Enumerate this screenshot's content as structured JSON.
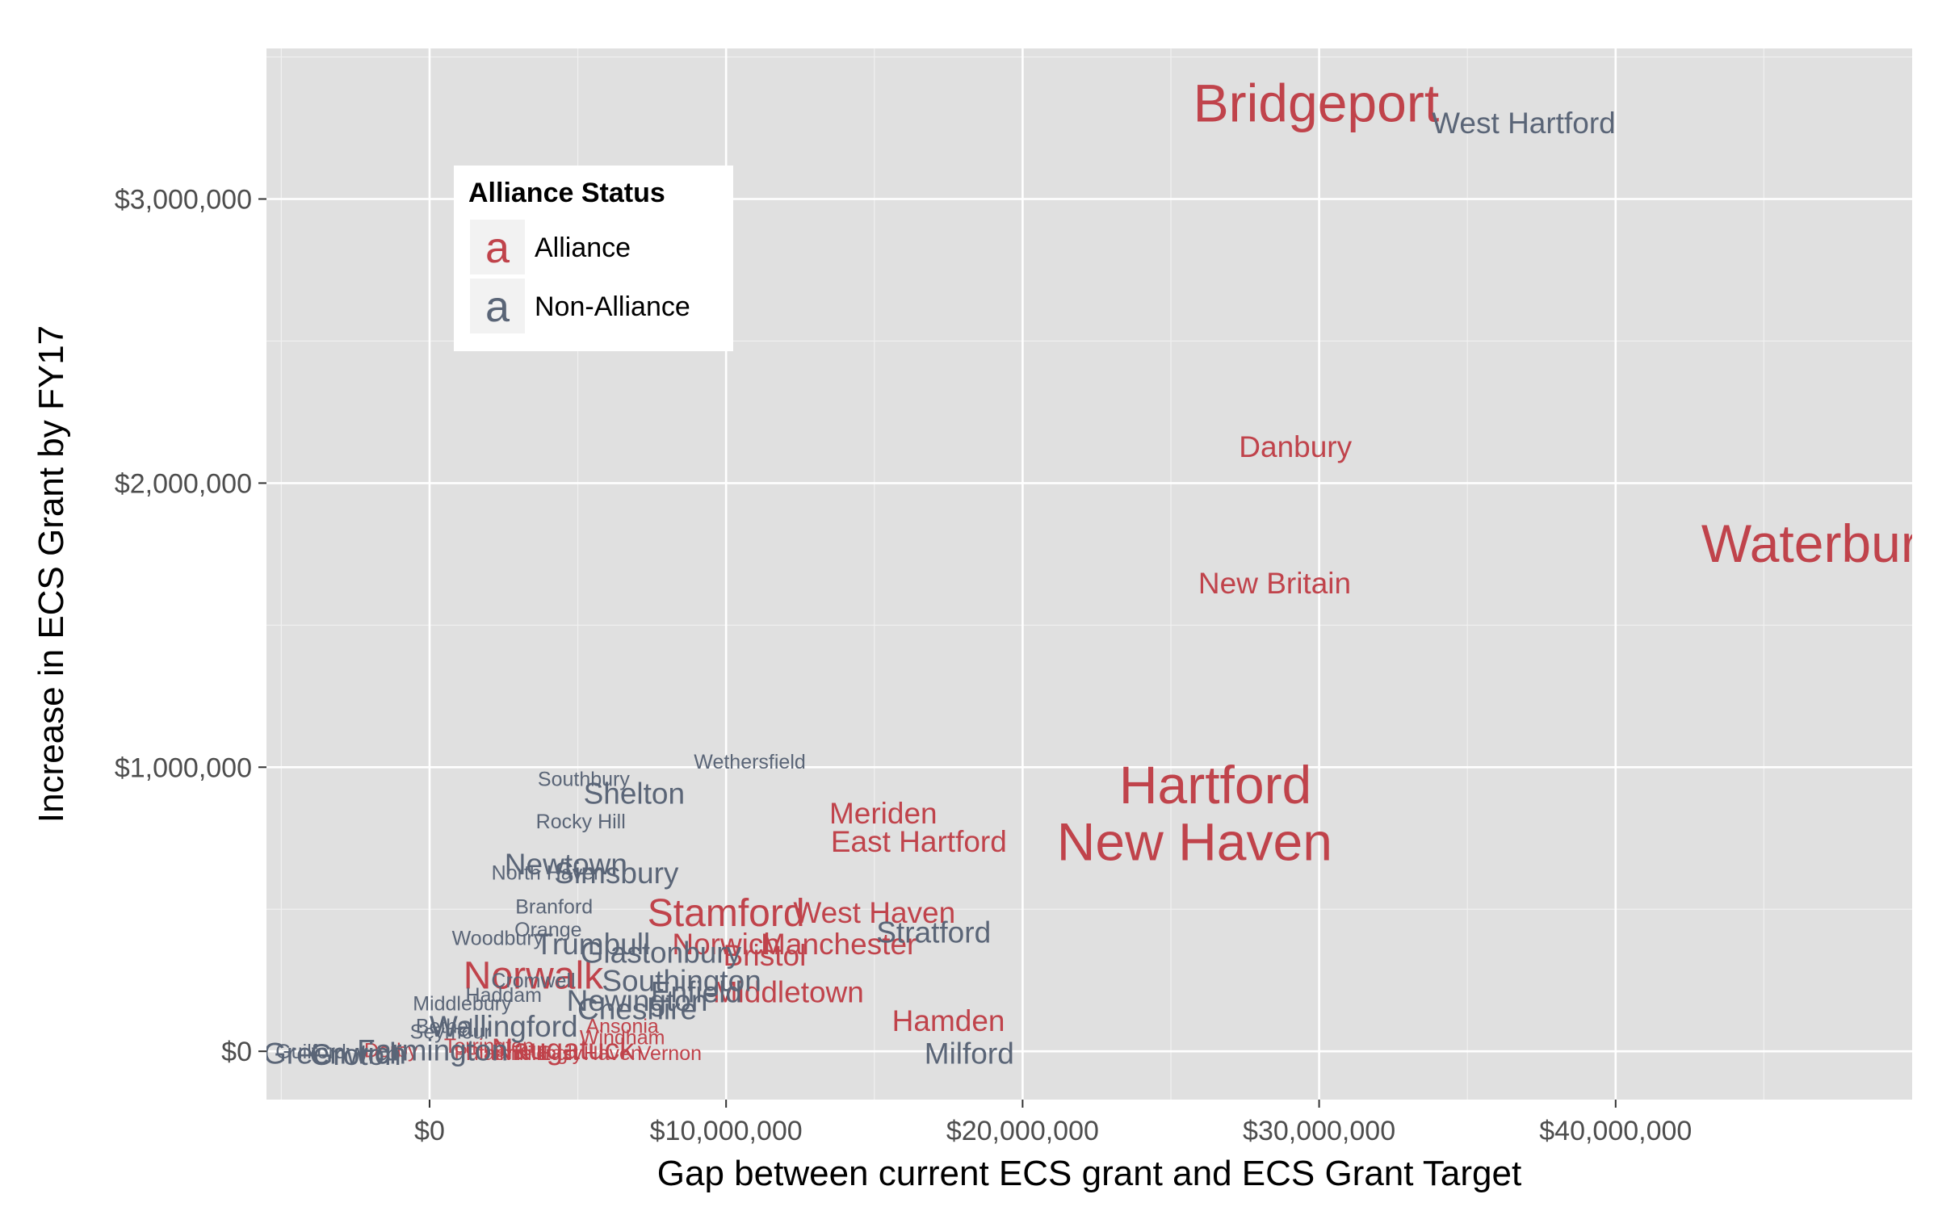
{
  "chart_data": {
    "type": "scatter",
    "title": "",
    "xlabel": "Gap between current ECS grant and ECS Grant Target",
    "ylabel": "Increase in ECS Grant by FY17",
    "xlim": [
      -5500000,
      50000000
    ],
    "ylim": [
      -170000,
      3530000
    ],
    "x_ticks": [
      0,
      10000000,
      20000000,
      30000000,
      40000000
    ],
    "x_tick_labels": [
      "$0",
      "$10,000,000",
      "$20,000,000",
      "$30,000,000",
      "$40,000,000"
    ],
    "y_ticks": [
      0,
      1000000,
      2000000,
      3000000
    ],
    "y_tick_labels": [
      "$0",
      "$1,000,000",
      "$2,000,000",
      "$3,000,000"
    ],
    "grid": true,
    "legend": {
      "title": "Alliance Status",
      "position": "top-left",
      "key_glyph": "a",
      "entries": [
        {
          "label": "Alliance",
          "color": "#c0434b"
        },
        {
          "label": "Non-Alliance",
          "color": "#5a6577"
        }
      ]
    },
    "colors": {
      "Alliance": "#c0434b",
      "Non-Alliance": "#5a6577",
      "panel": "#e0e0e0",
      "grid": "#ffffff"
    },
    "series": [
      {
        "name": "Alliance",
        "points": [
          {
            "label": "Bridgeport",
            "x": 29900000,
            "y": 3340000,
            "size": 4
          },
          {
            "label": "Waterbury",
            "x": 47000000,
            "y": 1790000,
            "size": 4
          },
          {
            "label": "Danbury",
            "x": 29200000,
            "y": 2130000,
            "size": 2
          },
          {
            "label": "New Britain",
            "x": 28500000,
            "y": 1650000,
            "size": 2
          },
          {
            "label": "Hartford",
            "x": 26500000,
            "y": 940000,
            "size": 4
          },
          {
            "label": "New Haven",
            "x": 25800000,
            "y": 740000,
            "size": 4
          },
          {
            "label": "Meriden",
            "x": 15300000,
            "y": 840000,
            "size": 2
          },
          {
            "label": "East Hartford",
            "x": 16500000,
            "y": 740000,
            "size": 2
          },
          {
            "label": "Stamford",
            "x": 10000000,
            "y": 490000,
            "size": 3
          },
          {
            "label": "West Haven",
            "x": 15000000,
            "y": 490000,
            "size": 2
          },
          {
            "label": "Manchester",
            "x": 13800000,
            "y": 380000,
            "size": 2
          },
          {
            "label": "Norwich",
            "x": 10000000,
            "y": 380000,
            "size": 2
          },
          {
            "label": "Bristol",
            "x": 11300000,
            "y": 340000,
            "size": 2
          },
          {
            "label": "Norwalk",
            "x": 3500000,
            "y": 270000,
            "size": 3
          },
          {
            "label": "Middletown",
            "x": 12100000,
            "y": 210000,
            "size": 2
          },
          {
            "label": "Hamden",
            "x": 17500000,
            "y": 110000,
            "size": 2
          },
          {
            "label": "Ansonia",
            "x": 6500000,
            "y": 90000,
            "size": 1
          },
          {
            "label": "Windham",
            "x": 6500000,
            "y": 50000,
            "size": 1
          },
          {
            "label": "Naugatuck",
            "x": 4500000,
            "y": 10000,
            "size": 2
          },
          {
            "label": "Torrington",
            "x": 2000000,
            "y": 20000,
            "size": 1
          },
          {
            "label": "Vernon",
            "x": 8100000,
            "y": -5000,
            "size": 1
          },
          {
            "label": "Killingly",
            "x": 4000000,
            "y": -5000,
            "size": 1
          },
          {
            "label": "Putnam",
            "x": 2000000,
            "y": -5000,
            "size": 1
          },
          {
            "label": "Derby",
            "x": -1300000,
            "y": 5000,
            "size": 1
          },
          {
            "label": "East Haven",
            "x": 5400000,
            "y": -5000,
            "size": 1
          },
          {
            "label": "Plainfield",
            "x": 2600000,
            "y": -5000,
            "size": 1
          }
        ]
      },
      {
        "name": "Non-Alliance",
        "points": [
          {
            "label": "West Hartford",
            "x": 36900000,
            "y": 3270000,
            "size": 2
          },
          {
            "label": "Wethersfield",
            "x": 10800000,
            "y": 1020000,
            "size": 1
          },
          {
            "label": "Southbury",
            "x": 5200000,
            "y": 960000,
            "size": 1
          },
          {
            "label": "Shelton",
            "x": 6900000,
            "y": 910000,
            "size": 2
          },
          {
            "label": "Rocky Hill",
            "x": 5100000,
            "y": 810000,
            "size": 1
          },
          {
            "label": "Newtown",
            "x": 4600000,
            "y": 660000,
            "size": 2
          },
          {
            "label": "North Haven",
            "x": 4000000,
            "y": 630000,
            "size": 1
          },
          {
            "label": "Simsbury",
            "x": 6300000,
            "y": 630000,
            "size": 2
          },
          {
            "label": "Branford",
            "x": 4200000,
            "y": 510000,
            "size": 1
          },
          {
            "label": "Stratford",
            "x": 17000000,
            "y": 420000,
            "size": 2
          },
          {
            "label": "Orange",
            "x": 4000000,
            "y": 430000,
            "size": 1
          },
          {
            "label": "Woodbury",
            "x": 2300000,
            "y": 400000,
            "size": 1
          },
          {
            "label": "Trumbull",
            "x": 5500000,
            "y": 380000,
            "size": 2
          },
          {
            "label": "Glastonbury",
            "x": 7800000,
            "y": 350000,
            "size": 2
          },
          {
            "label": "Southington",
            "x": 8500000,
            "y": 250000,
            "size": 2
          },
          {
            "label": "Cromwell",
            "x": 3500000,
            "y": 250000,
            "size": 1
          },
          {
            "label": "Enfield",
            "x": 9000000,
            "y": 210000,
            "size": 2
          },
          {
            "label": "Haddam",
            "x": 2500000,
            "y": 200000,
            "size": 1
          },
          {
            "label": "Newington",
            "x": 7000000,
            "y": 180000,
            "size": 2
          },
          {
            "label": "Middlebury",
            "x": 1100000,
            "y": 170000,
            "size": 1
          },
          {
            "label": "Cheshire",
            "x": 7000000,
            "y": 150000,
            "size": 2
          },
          {
            "label": "Wallingford",
            "x": 2500000,
            "y": 90000,
            "size": 2
          },
          {
            "label": "Bethel",
            "x": 500000,
            "y": 90000,
            "size": 1
          },
          {
            "label": "Seymour",
            "x": 700000,
            "y": 70000,
            "size": 1
          },
          {
            "label": "Milford",
            "x": 18200000,
            "y": -5000,
            "size": 2
          },
          {
            "label": "Greenwich",
            "x": -3200000,
            "y": -5000,
            "size": 2
          },
          {
            "label": "Guilford",
            "x": -4000000,
            "y": 0,
            "size": 1
          },
          {
            "label": "Groton",
            "x": -2500000,
            "y": -10000,
            "size": 2
          },
          {
            "label": "Farmington",
            "x": 100000,
            "y": 5000,
            "size": 2
          }
        ]
      }
    ]
  }
}
